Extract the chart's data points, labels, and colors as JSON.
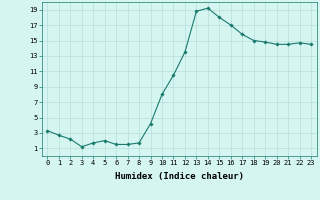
{
  "x": [
    0,
    1,
    2,
    3,
    4,
    5,
    6,
    7,
    8,
    9,
    10,
    11,
    12,
    13,
    14,
    15,
    16,
    17,
    18,
    19,
    20,
    21,
    22,
    23
  ],
  "y": [
    3.3,
    2.7,
    2.2,
    1.2,
    1.7,
    2.0,
    1.5,
    1.5,
    1.7,
    4.2,
    8.0,
    10.5,
    13.5,
    18.8,
    19.2,
    18.0,
    17.0,
    15.8,
    15.0,
    14.8,
    14.5,
    14.5,
    14.7,
    14.5
  ],
  "xlim": [
    -0.5,
    23.5
  ],
  "ylim": [
    0,
    20
  ],
  "yticks": [
    1,
    3,
    5,
    7,
    9,
    11,
    13,
    15,
    17,
    19
  ],
  "xticks": [
    0,
    1,
    2,
    3,
    4,
    5,
    6,
    7,
    8,
    9,
    10,
    11,
    12,
    13,
    14,
    15,
    16,
    17,
    18,
    19,
    20,
    21,
    22,
    23
  ],
  "xlabel": "Humidex (Indice chaleur)",
  "line_color": "#1a7a6e",
  "marker": "D",
  "marker_size": 1.8,
  "bg_color": "#d4f5f0",
  "grid_color": "#b8ddd8",
  "tick_fontsize": 5.0,
  "xlabel_fontsize": 6.5,
  "xlabel_fontweight": "bold"
}
